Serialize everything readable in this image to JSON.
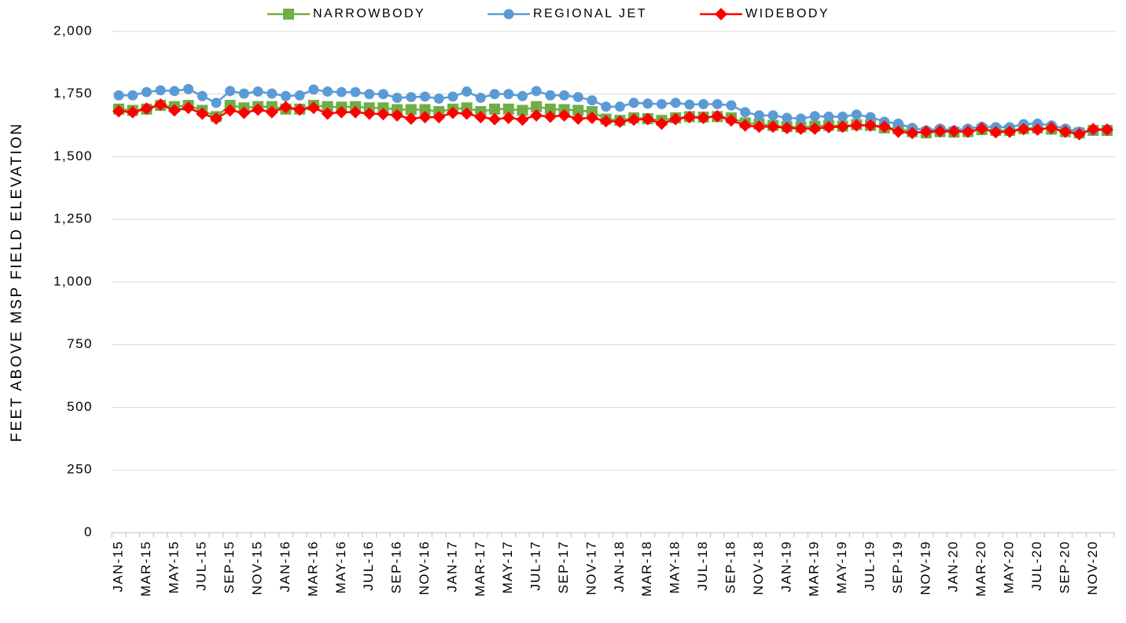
{
  "chart_data": {
    "type": "line",
    "y_label": "FEET ABOVE MSP FIELD ELEVATION",
    "categories": [
      "JAN-15",
      null,
      "MAR-15",
      null,
      "MAY-15",
      null,
      "JUL-15",
      null,
      "SEP-15",
      null,
      "NOV-15",
      null,
      "JAN-16",
      null,
      "MAR-16",
      null,
      "MAY-16",
      null,
      "JUL-16",
      null,
      "SEP-16",
      null,
      "NOV-16",
      null,
      "JAN-17",
      null,
      "MAR-17",
      null,
      "MAY-17",
      null,
      "JUL-17",
      null,
      "SEP-17",
      null,
      "NOV-17",
      null,
      "JAN-18",
      null,
      "MAR-18",
      null,
      "MAY-18",
      null,
      "JUL-18",
      null,
      "SEP-18",
      null,
      "NOV-18",
      null,
      "JAN-19",
      null,
      "MAR-19",
      null,
      "MAY-19",
      null,
      "JUL-19",
      null,
      "SEP-19",
      null,
      "NOV-19",
      null,
      "JAN-20",
      null,
      "MAR-20",
      null,
      "MAY-20",
      null,
      "JUL-20",
      null,
      "SEP-20",
      null,
      "NOV-20",
      null
    ],
    "series": [
      {
        "name": "NARROWBODY",
        "color": "#70ad47",
        "marker": "square",
        "values": [
          1690,
          1685,
          1690,
          1705,
          1700,
          1705,
          1685,
          1660,
          1705,
          1695,
          1700,
          1700,
          1690,
          1690,
          1705,
          1700,
          1698,
          1700,
          1695,
          1695,
          1688,
          1688,
          1688,
          1680,
          1690,
          1695,
          1680,
          1690,
          1690,
          1685,
          1700,
          1690,
          1688,
          1685,
          1680,
          1650,
          1645,
          1655,
          1652,
          1645,
          1655,
          1660,
          1658,
          1660,
          1655,
          1635,
          1630,
          1625,
          1620,
          1618,
          1622,
          1625,
          1622,
          1628,
          1625,
          1615,
          1612,
          1600,
          1595,
          1600,
          1598,
          1600,
          1608,
          1605,
          1605,
          1612,
          1615,
          1610,
          1600,
          1595,
          1605,
          1605
        ]
      },
      {
        "name": "REGIONAL JET",
        "color": "#5b9bd5",
        "marker": "circle",
        "values": [
          1745,
          1745,
          1758,
          1765,
          1762,
          1770,
          1742,
          1715,
          1762,
          1752,
          1760,
          1752,
          1742,
          1745,
          1768,
          1760,
          1758,
          1758,
          1750,
          1750,
          1735,
          1738,
          1740,
          1732,
          1740,
          1760,
          1735,
          1750,
          1750,
          1742,
          1762,
          1745,
          1745,
          1738,
          1725,
          1700,
          1700,
          1715,
          1712,
          1710,
          1715,
          1708,
          1710,
          1710,
          1705,
          1678,
          1665,
          1665,
          1655,
          1652,
          1662,
          1660,
          1660,
          1668,
          1658,
          1640,
          1632,
          1615,
          1605,
          1612,
          1605,
          1612,
          1620,
          1618,
          1618,
          1630,
          1632,
          1625,
          1612,
          1600,
          1605,
          1608
        ]
      },
      {
        "name": "WIDEBODY",
        "color": "#ff0000",
        "marker": "diamond",
        "values": [
          1682,
          1678,
          1692,
          1708,
          1685,
          1695,
          1672,
          1652,
          1685,
          1675,
          1688,
          1678,
          1698,
          1688,
          1695,
          1672,
          1678,
          1678,
          1672,
          1670,
          1665,
          1652,
          1658,
          1658,
          1675,
          1672,
          1658,
          1650,
          1655,
          1648,
          1665,
          1660,
          1665,
          1652,
          1655,
          1642,
          1640,
          1648,
          1650,
          1632,
          1650,
          1658,
          1655,
          1662,
          1645,
          1625,
          1620,
          1620,
          1615,
          1612,
          1612,
          1618,
          1620,
          1625,
          1625,
          1620,
          1600,
          1595,
          1600,
          1602,
          1602,
          1600,
          1612,
          1598,
          1600,
          1610,
          1608,
          1615,
          1600,
          1590,
          1610,
          1608
        ]
      }
    ],
    "ylim": [
      0,
      2000
    ],
    "yticks": [
      0,
      250,
      500,
      750,
      {
        "value": 1000,
        "label": "1,000"
      },
      {
        "value": 1250,
        "label": "1,250"
      },
      {
        "value": 1500,
        "label": "1,500"
      },
      {
        "value": 1750,
        "label": "1,750"
      },
      {
        "value": 2000,
        "label": "2,000"
      }
    ],
    "grid": true,
    "legend": "top"
  }
}
